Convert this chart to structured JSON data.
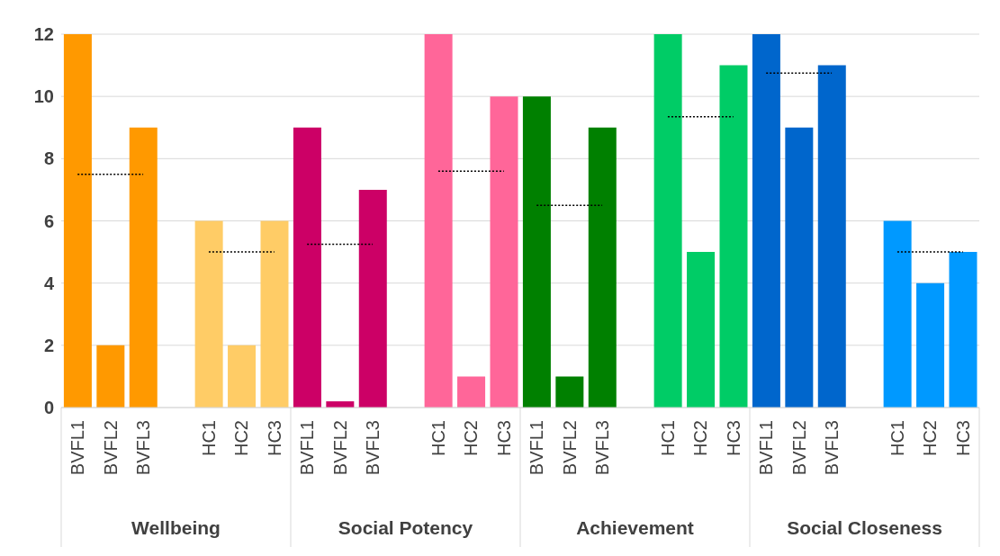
{
  "chart_data": {
    "type": "bar",
    "categories": [
      "BVFL1",
      "BVFL2",
      "BVFL3",
      null,
      "HC1",
      "HC2",
      "HC3",
      "BVFL1",
      "BVFL2",
      "BVFL3",
      null,
      "HC1",
      "HC2",
      "HC3",
      "BVFL1",
      "BVFL2",
      "BVFL3",
      null,
      "HC1",
      "HC2",
      "HC3",
      "BVFL1",
      "BVFL2",
      "BVFL3",
      null,
      "HC1",
      "HC2",
      "HC3"
    ],
    "series": [
      {
        "values": [
          12,
          2,
          9,
          null,
          6,
          2,
          6,
          9,
          0.2,
          7,
          null,
          12,
          1,
          10,
          10,
          1,
          9,
          null,
          12,
          5,
          11,
          12,
          9,
          11,
          null,
          6,
          4,
          5
        ],
        "colors": [
          "#ff9900",
          "#ff9900",
          "#ff9900",
          "#ffffff",
          "#ffcc66",
          "#ffcc66",
          "#ffcc66",
          "#cc0066",
          "#cc0066",
          "#cc0066",
          "#ffffff",
          "#ff6699",
          "#ff6699",
          "#ff6699",
          "#008000",
          "#008000",
          "#008000",
          "#ffffff",
          "#00cc66",
          "#00cc66",
          "#00cc66",
          "#0066cc",
          "#0066cc",
          "#0066cc",
          "#ffffff",
          "#0099ff",
          "#0099ff",
          "#0099ff"
        ]
      },
      {
        "type": "line",
        "color": "#000000",
        "line_style": "dotted",
        "marker": "none",
        "values": [
          7.5,
          7.5,
          7.5,
          null,
          null,
          null,
          null,
          5.25,
          5.25,
          5.25,
          null,
          null,
          null,
          null,
          6.5,
          6.5,
          6.5,
          null,
          null,
          null,
          null,
          10.75,
          10.75,
          10.75,
          null,
          null,
          null,
          null
        ]
      },
      {
        "type": "line",
        "color": "#000000",
        "line_style": "dotted",
        "marker": "none",
        "values": [
          null,
          null,
          null,
          null,
          5,
          5,
          5,
          null,
          null,
          null,
          null,
          7.6,
          7.6,
          7.6,
          null,
          null,
          null,
          null,
          9.35,
          9.35,
          9.35,
          null,
          null,
          null,
          null,
          5,
          5,
          5
        ]
      }
    ],
    "annotations": [
      "Wellbeing",
      "Social Potency",
      "Achievement",
      "Social Closeness"
    ],
    "ylim": [
      0,
      12
    ],
    "yticks": [
      0,
      2,
      4,
      6,
      8,
      10,
      12
    ],
    "grid": "y"
  }
}
